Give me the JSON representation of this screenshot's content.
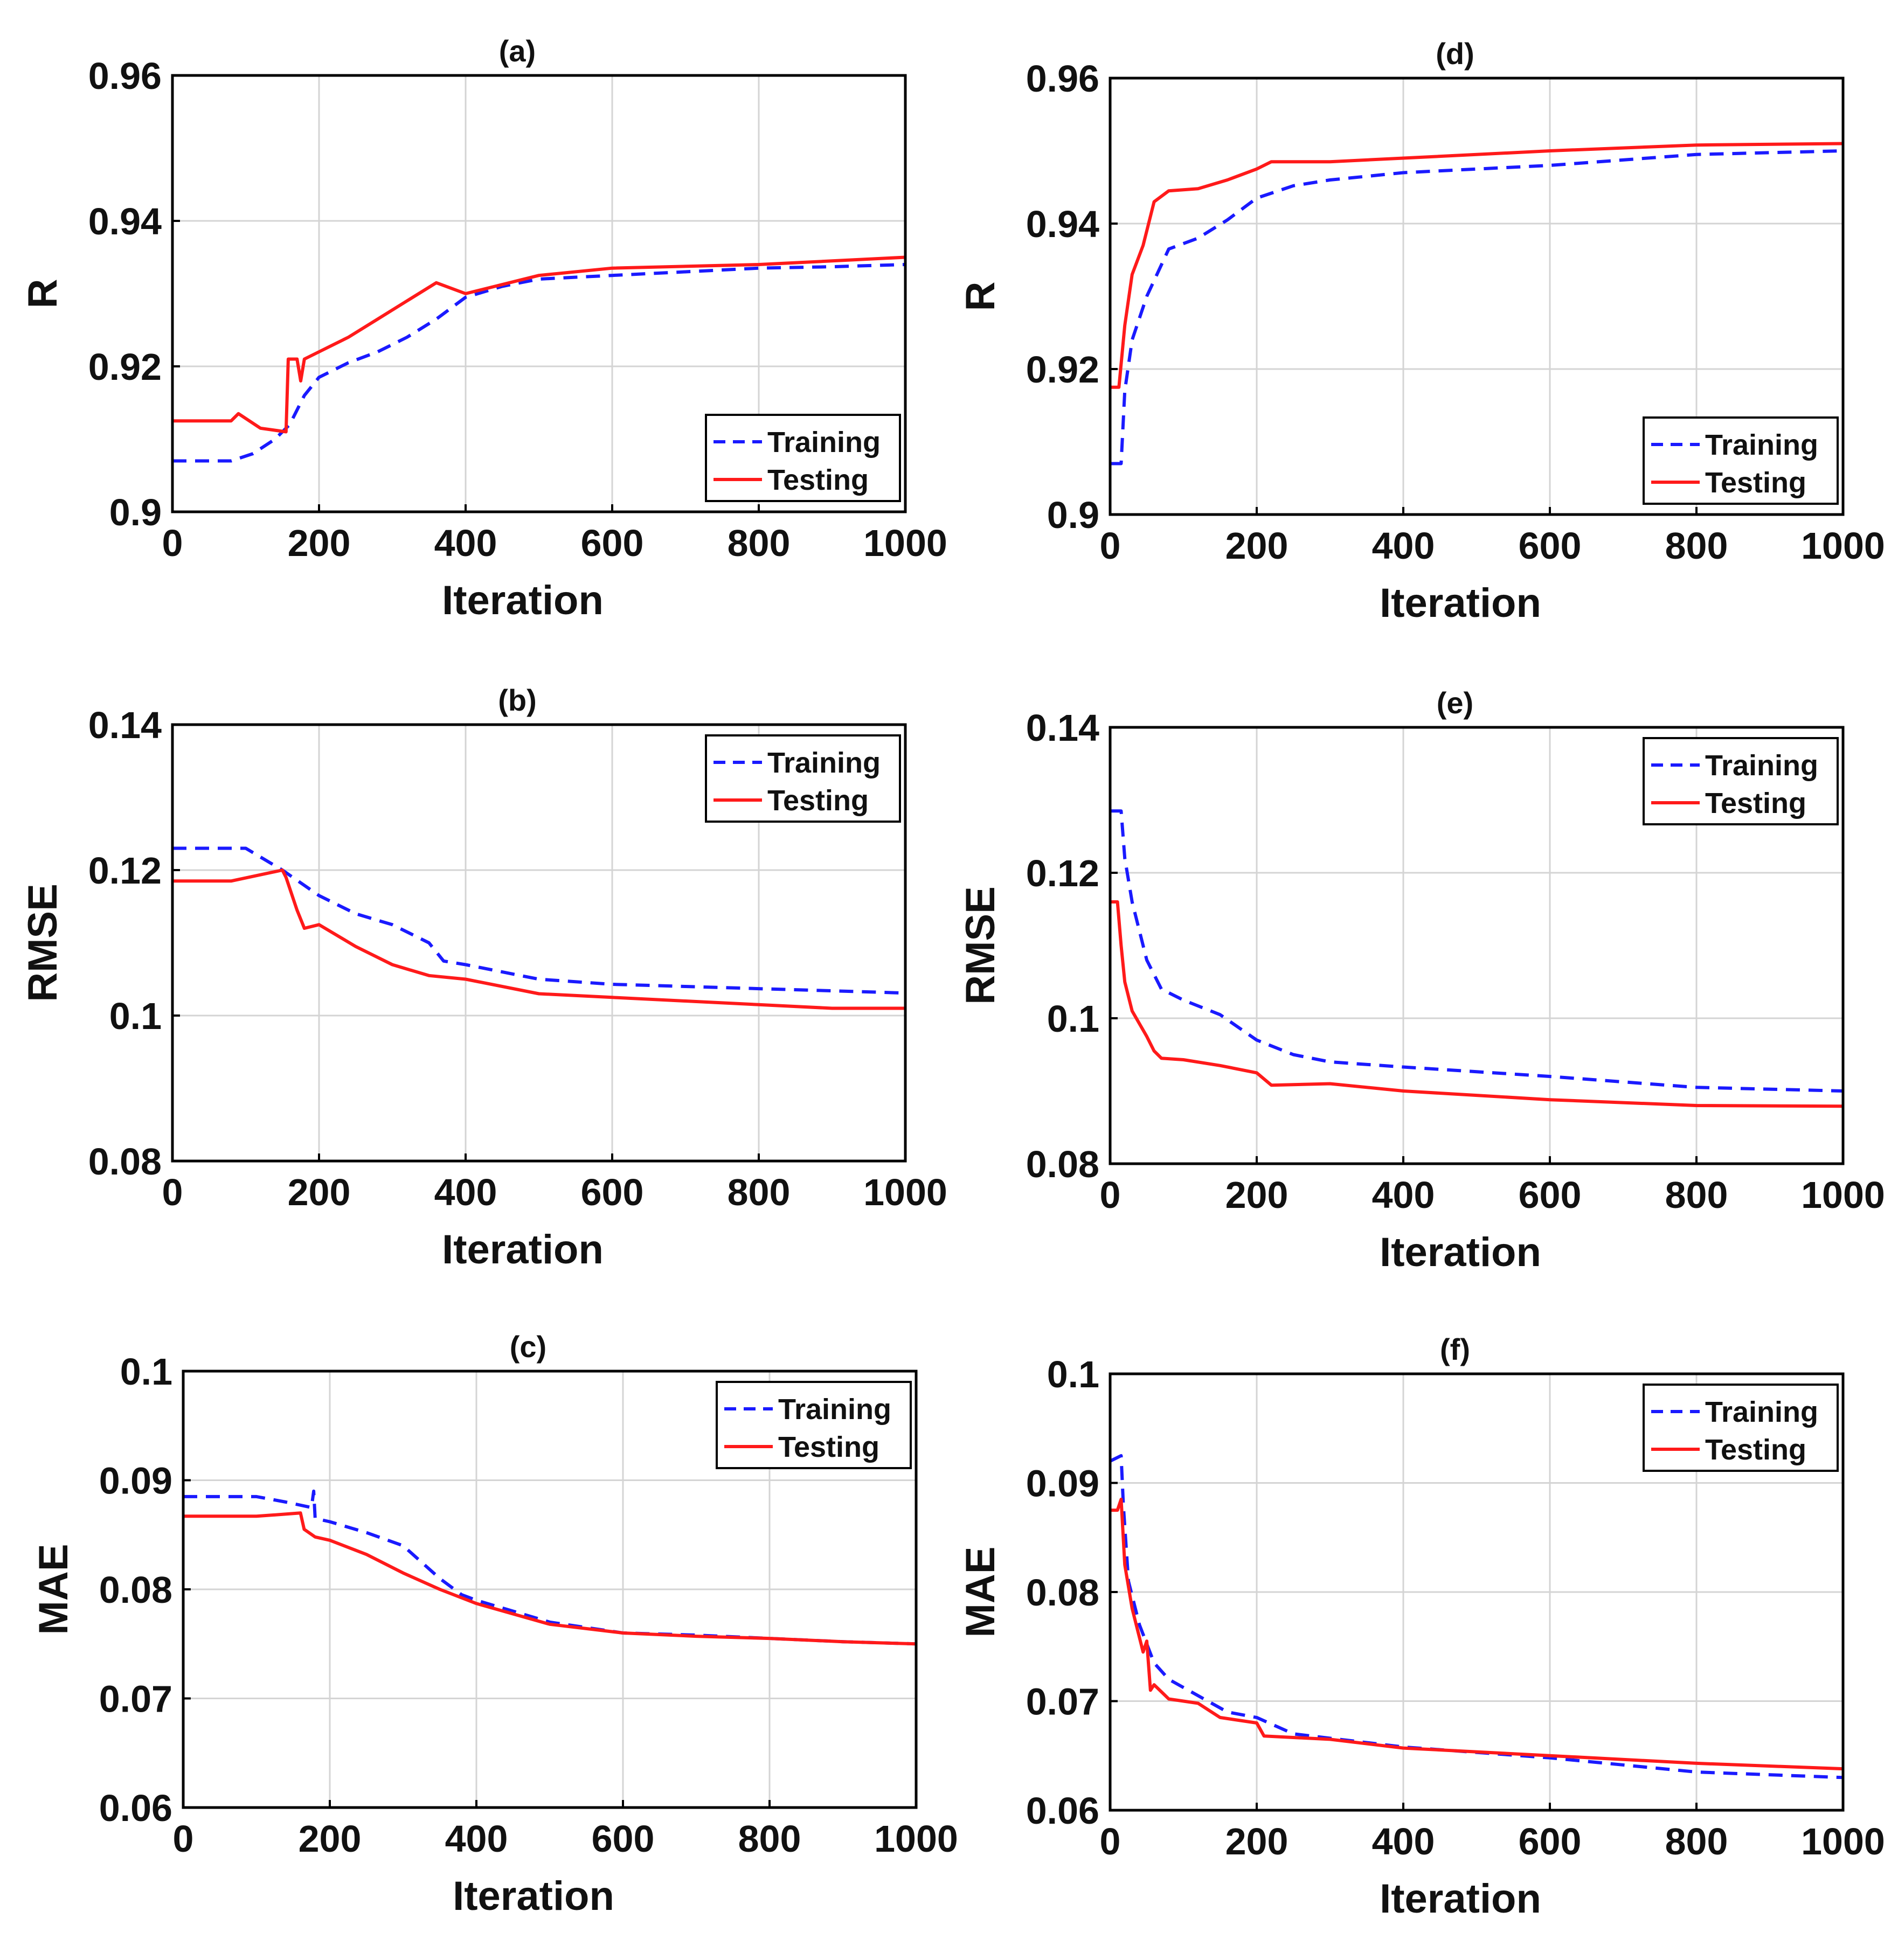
{
  "colors": {
    "training": "#1a1aff",
    "testing": "#ff1a1a"
  },
  "chart_data": [
    {
      "type": "line",
      "title": "(a)",
      "xlabel": "Iteration",
      "ylabel": "R",
      "xlim": [
        0,
        1000
      ],
      "ylim": [
        0.9,
        0.96
      ],
      "xticks": [
        0,
        200,
        400,
        600,
        800,
        1000
      ],
      "xtick_labels": [
        "0",
        "200",
        "400",
        "600",
        "800",
        "1000"
      ],
      "yticks": [
        0.9,
        0.92,
        0.94,
        0.96
      ],
      "ytick_labels": [
        "0.9",
        "0.92",
        "0.94",
        "0.96"
      ],
      "legend": {
        "position": "bottom-right",
        "entries": [
          "Training",
          "Testing"
        ]
      },
      "series": [
        {
          "name": "Training",
          "style": "dashed",
          "x": [
            0,
            80,
            110,
            140,
            160,
            180,
            200,
            240,
            280,
            320,
            360,
            400,
            450,
            500,
            600,
            700,
            800,
            900,
            1000
          ],
          "y": [
            0.907,
            0.907,
            0.908,
            0.91,
            0.912,
            0.916,
            0.9185,
            0.9205,
            0.922,
            0.924,
            0.9265,
            0.9295,
            0.931,
            0.932,
            0.9325,
            0.933,
            0.9335,
            0.9337,
            0.934
          ]
        },
        {
          "name": "Testing",
          "style": "solid",
          "x": [
            0,
            80,
            90,
            120,
            155,
            158,
            170,
            175,
            180,
            200,
            240,
            280,
            320,
            360,
            400,
            500,
            600,
            800,
            1000
          ],
          "y": [
            0.9125,
            0.9125,
            0.9135,
            0.9115,
            0.911,
            0.921,
            0.921,
            0.918,
            0.921,
            0.922,
            0.924,
            0.9265,
            0.929,
            0.9315,
            0.93,
            0.9325,
            0.9335,
            0.934,
            0.935
          ]
        }
      ]
    },
    {
      "type": "line",
      "title": "(b)",
      "xlabel": "Iteration",
      "ylabel": "RMSE",
      "xlim": [
        0,
        1000
      ],
      "ylim": [
        0.08,
        0.14
      ],
      "xticks": [
        0,
        200,
        400,
        600,
        800,
        1000
      ],
      "xtick_labels": [
        "0",
        "200",
        "400",
        "600",
        "800",
        "1000"
      ],
      "yticks": [
        0.08,
        0.1,
        0.12,
        0.14
      ],
      "ytick_labels": [
        "0.08",
        "0.1",
        "0.12",
        "0.14"
      ],
      "legend": {
        "position": "top-right",
        "entries": [
          "Training",
          "Testing"
        ]
      },
      "series": [
        {
          "name": "Training",
          "style": "dashed",
          "x": [
            0,
            100,
            150,
            200,
            250,
            300,
            350,
            370,
            400,
            500,
            600,
            700,
            800,
            900,
            1000
          ],
          "y": [
            0.123,
            0.123,
            0.12,
            0.1165,
            0.114,
            0.1125,
            0.11,
            0.1075,
            0.107,
            0.105,
            0.1043,
            0.104,
            0.1037,
            0.1034,
            0.1031
          ]
        },
        {
          "name": "Testing",
          "style": "solid",
          "x": [
            0,
            80,
            150,
            155,
            170,
            180,
            200,
            250,
            300,
            350,
            400,
            500,
            600,
            700,
            800,
            900,
            1000
          ],
          "y": [
            0.1185,
            0.1185,
            0.12,
            0.119,
            0.1145,
            0.112,
            0.1125,
            0.1095,
            0.107,
            0.1055,
            0.105,
            0.103,
            0.1025,
            0.102,
            0.1015,
            0.101,
            0.101
          ]
        }
      ]
    },
    {
      "type": "line",
      "title": "(c)",
      "xlabel": "Iteration",
      "ylabel": "MAE",
      "xlim": [
        0,
        1000
      ],
      "ylim": [
        0.06,
        0.1
      ],
      "xticks": [
        0,
        200,
        400,
        600,
        800,
        1000
      ],
      "xtick_labels": [
        "0",
        "200",
        "400",
        "600",
        "800",
        "1000"
      ],
      "yticks": [
        0.06,
        0.07,
        0.08,
        0.09,
        0.1
      ],
      "ytick_labels": [
        "0.06",
        "0.07",
        "0.08",
        "0.09",
        "0.1"
      ],
      "legend": {
        "position": "top-right",
        "entries": [
          "Training",
          "Testing"
        ]
      },
      "series": [
        {
          "name": "Training",
          "style": "dashed",
          "x": [
            0,
            100,
            140,
            175,
            178,
            180,
            200,
            250,
            300,
            350,
            380,
            400,
            500,
            600,
            700,
            800,
            900,
            1000
          ],
          "y": [
            0.0885,
            0.0885,
            0.088,
            0.0875,
            0.089,
            0.0865,
            0.0862,
            0.0852,
            0.084,
            0.081,
            0.0795,
            0.079,
            0.077,
            0.076,
            0.0758,
            0.0755,
            0.0752,
            0.075
          ]
        },
        {
          "name": "Testing",
          "style": "solid",
          "x": [
            0,
            100,
            160,
            165,
            180,
            200,
            250,
            300,
            350,
            400,
            500,
            600,
            700,
            800,
            900,
            1000
          ],
          "y": [
            0.0867,
            0.0867,
            0.087,
            0.0855,
            0.0848,
            0.0845,
            0.0832,
            0.0815,
            0.08,
            0.0787,
            0.0768,
            0.076,
            0.0757,
            0.0755,
            0.0752,
            0.075
          ]
        }
      ]
    },
    {
      "type": "line",
      "title": "(d)",
      "xlabel": "Iteration",
      "ylabel": "R",
      "xlim": [
        0,
        1000
      ],
      "ylim": [
        0.9,
        0.96
      ],
      "xticks": [
        0,
        200,
        400,
        600,
        800,
        1000
      ],
      "xtick_labels": [
        "0",
        "200",
        "400",
        "600",
        "800",
        "1000"
      ],
      "yticks": [
        0.9,
        0.92,
        0.94,
        0.96
      ],
      "ytick_labels": [
        "0.9",
        "0.92",
        "0.94",
        "0.96"
      ],
      "legend": {
        "position": "bottom-right",
        "entries": [
          "Training",
          "Testing"
        ]
      },
      "series": [
        {
          "name": "Training",
          "style": "dashed",
          "x": [
            0,
            15,
            20,
            30,
            50,
            80,
            120,
            160,
            200,
            250,
            300,
            400,
            600,
            800,
            1000
          ],
          "y": [
            0.907,
            0.907,
            0.917,
            0.924,
            0.93,
            0.9365,
            0.938,
            0.9405,
            0.9435,
            0.9452,
            0.946,
            0.947,
            0.948,
            0.9495,
            0.95
          ]
        },
        {
          "name": "Testing",
          "style": "solid",
          "x": [
            0,
            12,
            20,
            30,
            45,
            60,
            80,
            120,
            160,
            200,
            220,
            300,
            400,
            600,
            800,
            1000
          ],
          "y": [
            0.9175,
            0.9175,
            0.926,
            0.933,
            0.937,
            0.943,
            0.9445,
            0.9448,
            0.946,
            0.9475,
            0.9485,
            0.9485,
            0.949,
            0.95,
            0.9508,
            0.951
          ]
        }
      ]
    },
    {
      "type": "line",
      "title": "(e)",
      "xlabel": "Iteration",
      "ylabel": "RMSE",
      "xlim": [
        0,
        1000
      ],
      "ylim": [
        0.08,
        0.14
      ],
      "xticks": [
        0,
        200,
        400,
        600,
        800,
        1000
      ],
      "xtick_labels": [
        "0",
        "200",
        "400",
        "600",
        "800",
        "1000"
      ],
      "yticks": [
        0.08,
        0.1,
        0.12,
        0.14
      ],
      "ytick_labels": [
        "0.08",
        "0.1",
        "0.12",
        "0.14"
      ],
      "legend": {
        "position": "top-right",
        "entries": [
          "Training",
          "Testing"
        ]
      },
      "series": [
        {
          "name": "Training",
          "style": "dashed",
          "x": [
            0,
            15,
            20,
            30,
            50,
            70,
            100,
            150,
            200,
            250,
            300,
            400,
            600,
            800,
            1000
          ],
          "y": [
            0.1285,
            0.1285,
            0.122,
            0.116,
            0.108,
            0.104,
            0.1025,
            0.1005,
            0.097,
            0.095,
            0.094,
            0.0933,
            0.092,
            0.0905,
            0.09
          ]
        },
        {
          "name": "Testing",
          "style": "solid",
          "x": [
            0,
            10,
            15,
            20,
            30,
            50,
            60,
            70,
            100,
            150,
            200,
            220,
            300,
            400,
            600,
            800,
            1000
          ],
          "y": [
            0.116,
            0.116,
            0.11,
            0.105,
            0.101,
            0.0975,
            0.0955,
            0.0945,
            0.0943,
            0.0935,
            0.0925,
            0.0908,
            0.091,
            0.09,
            0.0888,
            0.088,
            0.0879
          ]
        }
      ]
    },
    {
      "type": "line",
      "title": "(f)",
      "xlabel": "Iteration",
      "ylabel": "MAE",
      "xlim": [
        0,
        1000
      ],
      "ylim": [
        0.06,
        0.1
      ],
      "xticks": [
        0,
        200,
        400,
        600,
        800,
        1000
      ],
      "xtick_labels": [
        "0",
        "200",
        "400",
        "600",
        "800",
        "1000"
      ],
      "yticks": [
        0.06,
        0.07,
        0.08,
        0.09,
        0.1
      ],
      "ytick_labels": [
        "0.06",
        "0.07",
        "0.08",
        "0.09",
        "0.1"
      ],
      "legend": {
        "position": "top-right",
        "entries": [
          "Training",
          "Testing"
        ]
      },
      "series": [
        {
          "name": "Training",
          "style": "dashed",
          "x": [
            0,
            15,
            18,
            25,
            40,
            60,
            80,
            120,
            160,
            200,
            250,
            400,
            600,
            800,
            1000
          ],
          "y": [
            0.092,
            0.0925,
            0.088,
            0.081,
            0.077,
            0.0735,
            0.072,
            0.0705,
            0.069,
            0.0685,
            0.067,
            0.0658,
            0.0648,
            0.0635,
            0.063
          ]
        },
        {
          "name": "Testing",
          "style": "solid",
          "x": [
            0,
            10,
            15,
            20,
            30,
            45,
            50,
            55,
            60,
            80,
            120,
            150,
            200,
            210,
            300,
            400,
            600,
            800,
            1000
          ],
          "y": [
            0.0875,
            0.0875,
            0.0885,
            0.0825,
            0.0785,
            0.0745,
            0.0755,
            0.071,
            0.0715,
            0.0702,
            0.0698,
            0.0685,
            0.068,
            0.0668,
            0.0665,
            0.0657,
            0.065,
            0.0643,
            0.0638
          ]
        }
      ]
    }
  ]
}
